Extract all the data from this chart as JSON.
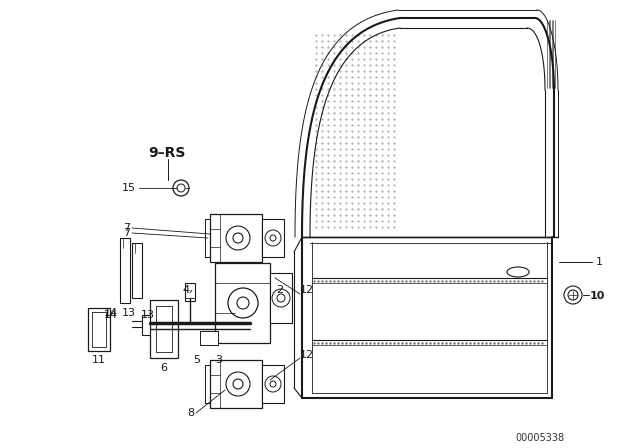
{
  "background_color": "#ffffff",
  "line_color": "#1a1a1a",
  "fig_width": 6.4,
  "fig_height": 4.48,
  "dpi": 100,
  "part_number_code": "00005338"
}
